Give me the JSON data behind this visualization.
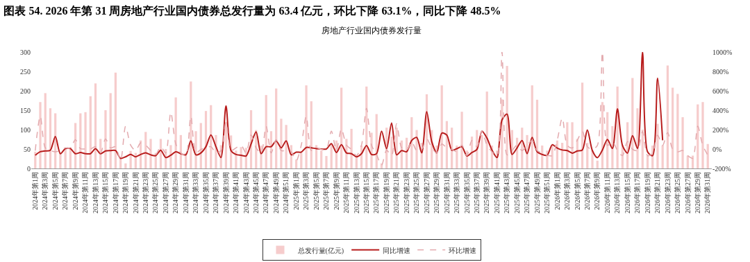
{
  "chart_data": {
    "type": "bar",
    "title": "图表 54. 2026 年第 31 周房地产行业国内债券总发行量为 63.4 亿元，环比下降 63.1%，同比下降 48.5%",
    "subtitle": "房地产行业国内债券发行量",
    "categories": [
      "2024年第1周",
      null,
      "2024年第3周",
      null,
      "2024年第5周",
      null,
      "2024年第7周",
      null,
      "2024年第9周",
      null,
      "2024年第11周",
      null,
      "2024年第13周",
      null,
      "2024年第15周",
      null,
      "2024年第17周",
      null,
      "2024年第19周",
      null,
      "2024年第21周",
      null,
      "2024年第23周",
      null,
      "2024年第25周",
      null,
      "2024年第27周",
      null,
      "2024年第29周",
      null,
      "2024年第31周",
      null,
      "2024年第33周",
      null,
      "2024年第35周",
      null,
      "2024年第37周",
      null,
      "2024年第39周",
      null,
      "2024年第41周",
      null,
      "2024年第43周",
      null,
      "2024年第45周",
      null,
      "2024年第47周",
      null,
      "2024年第49周",
      null,
      "2024年第51周",
      null,
      "2025年第1周",
      null,
      "2025年第3周",
      null,
      "2025年第5周",
      null,
      "2025年第7周",
      null,
      "2025年第9周",
      null,
      "2025年第11周",
      null,
      "2025年第13周",
      null,
      "2025年第15周",
      null,
      "2025年第17周",
      null,
      "2025年第19周",
      null,
      "2025年第21周",
      null,
      "2025年第23周",
      null,
      "2025年第25周",
      null,
      "2025年第27周",
      null,
      "2025年第29周",
      null,
      "2025年第31周",
      null,
      "2025年第33周",
      null,
      "2025年第35周",
      null,
      "2025年第37周",
      null,
      "2025年第39周",
      null,
      "2025年第41周",
      null,
      "2025年第43周",
      null,
      "2025年第45周",
      null,
      "2025年第47周",
      null,
      "2025年第49周",
      null,
      "2025年第51周",
      null,
      "2026年第1周",
      null,
      "2026年第3周",
      null,
      "2026年第5周",
      null,
      "2026年第7周",
      null,
      "2026年第9周",
      null,
      "2026年第11周",
      null,
      "2026年第13周",
      null,
      "2026年第15周",
      null,
      "2026年第17周",
      null,
      "2026年第19周",
      null,
      "2026年第21周",
      null,
      "2026年第23周",
      null,
      "2026年第25周",
      null,
      "2026年第27周",
      null,
      "2026年第29周",
      null,
      "2026年第31周"
    ],
    "series": [
      {
        "name": "总发行量(亿元)",
        "color": "#f6cccc",
        "values": [
          43,
          171,
          194,
          155,
          142,
          40,
          50,
          55,
          117,
          142,
          145,
          186,
          219,
          76,
          150,
          194,
          247,
          25,
          13,
          45,
          40,
          72,
          94,
          76,
          40,
          76,
          50,
          60,
          183,
          86,
          40,
          224,
          96,
          117,
          148,
          163,
          86,
          60,
          120,
          85,
          46,
          55,
          53,
          150,
          99,
          59,
          189,
          96,
          206,
          128,
          112,
          60,
          23,
          40,
          214,
          173,
          60,
          46,
          32,
          62,
          72,
          208,
          76,
          102,
          33,
          59,
          211,
          92,
          140,
          13,
          105,
          82,
          105,
          72,
          79,
          132,
          99,
          66,
          191,
          99,
          59,
          214,
          122,
          105,
          59,
          146,
          46,
          82,
          99,
          86,
          198,
          59,
          46,
          178,
          264,
          99,
          79,
          105,
          86,
          214,
          177,
          59,
          46,
          59,
          72,
          66,
          119,
          119,
          76,
          221,
          66,
          46,
          20,
          171,
          145,
          109,
          211,
          59,
          119,
          233,
          155,
          100,
          33,
          59,
          115,
          59,
          265,
          208,
          192,
          132,
          33,
          33,
          165,
          171,
          63
        ]
      },
      {
        "name": "同比增速",
        "type": "line",
        "axis": "y2",
        "color": "#b81c1c",
        "line_style": "solid",
        "values": [
          -64,
          -28,
          -20,
          -12,
          128,
          -48,
          4,
          4,
          -48,
          -36,
          -48,
          -48,
          4,
          -48,
          -20,
          -16,
          -16,
          -96,
          -80,
          -56,
          -80,
          -56,
          -40,
          -60,
          -68,
          -12,
          -88,
          -64,
          -28,
          -48,
          -60,
          84,
          -60,
          -40,
          24,
          144,
          24,
          -88,
          444,
          -16,
          -56,
          -64,
          -72,
          52,
          176,
          -48,
          24,
          24,
          84,
          12,
          84,
          -60,
          -32,
          -32,
          16,
          12,
          4,
          0,
          0,
          56,
          -36,
          44,
          -40,
          -48,
          -80,
          -48,
          36,
          -56,
          -48,
          184,
          4,
          268,
          -60,
          -16,
          -28,
          88,
          120,
          -40,
          384,
          76,
          -40,
          164,
          144,
          -12,
          4,
          24,
          -72,
          -36,
          -4,
          184,
          112,
          -12,
          -88,
          300,
          360,
          -56,
          12,
          88,
          -48,
          120,
          -28,
          -56,
          -64,
          44,
          10,
          -10,
          -16,
          -42,
          -20,
          -10,
          196,
          -16,
          -89,
          -10,
          98,
          6,
          414,
          37,
          -42,
          138,
          6,
          1000,
          -29,
          -68,
          731,
          90,
          null,
          null,
          null,
          null,
          null,
          null,
          null,
          null,
          null
        ]
      },
      {
        "name": "环比增速",
        "type": "line",
        "axis": "y2",
        "color": "#e3a9ad",
        "line_style": "dashed",
        "values": [
          -16,
          340,
          12,
          -16,
          -28,
          -16,
          12,
          12,
          96,
          4,
          0,
          0,
          24,
          -40,
          104,
          12,
          24,
          -120,
          236,
          40,
          -16,
          64,
          40,
          -16,
          -56,
          24,
          -40,
          380,
          52,
          -40,
          -68,
          340,
          -40,
          -4,
          12,
          24,
          -40,
          -16,
          276,
          -16,
          12,
          40,
          -40,
          144,
          12,
          -40,
          236,
          -40,
          96,
          -16,
          -16,
          -28,
          -120,
          40,
          340,
          -16,
          12,
          -4,
          -4,
          184,
          -16,
          208,
          40,
          -4,
          -68,
          40,
          420,
          40,
          -56,
          -168,
          -12,
          -68,
          260,
          12,
          -16,
          76,
          -16,
          -4,
          104,
          12,
          -40,
          52,
          12,
          -4,
          -28,
          40,
          -68,
          88,
          24,
          184,
          40,
          -28,
          -68,
          1000,
          -60,
          -16,
          40,
          -16,
          40,
          88,
          -16,
          -40,
          -64,
          -68,
          90,
          320,
          37,
          11,
          90,
          182,
          24,
          -2,
          37,
          1000,
          37,
          77,
          -15,
          -68,
          77,
          -2,
          -15,
          180,
          -68,
          -42,
          143,
          37,
          169,
          -2,
          -29,
          -15,
          -68,
          -95,
          235,
          37,
          -63
        ]
      }
    ],
    "ylim": [
      0,
      300
    ],
    "yticks": [
      0,
      50,
      100,
      150,
      200,
      250,
      300
    ],
    "y2lim": [
      -200,
      1000
    ],
    "y2ticks": [
      {
        "value": -200,
        "label": "-200%"
      },
      {
        "value": 0,
        "label": "0%"
      },
      {
        "value": 200,
        "label": "200%"
      },
      {
        "value": 400,
        "label": "400%"
      },
      {
        "value": 600,
        "label": "600%"
      },
      {
        "value": 800,
        "label": "800%"
      },
      {
        "value": 1000,
        "label": "1000%"
      }
    ],
    "legend": "bottom"
  }
}
